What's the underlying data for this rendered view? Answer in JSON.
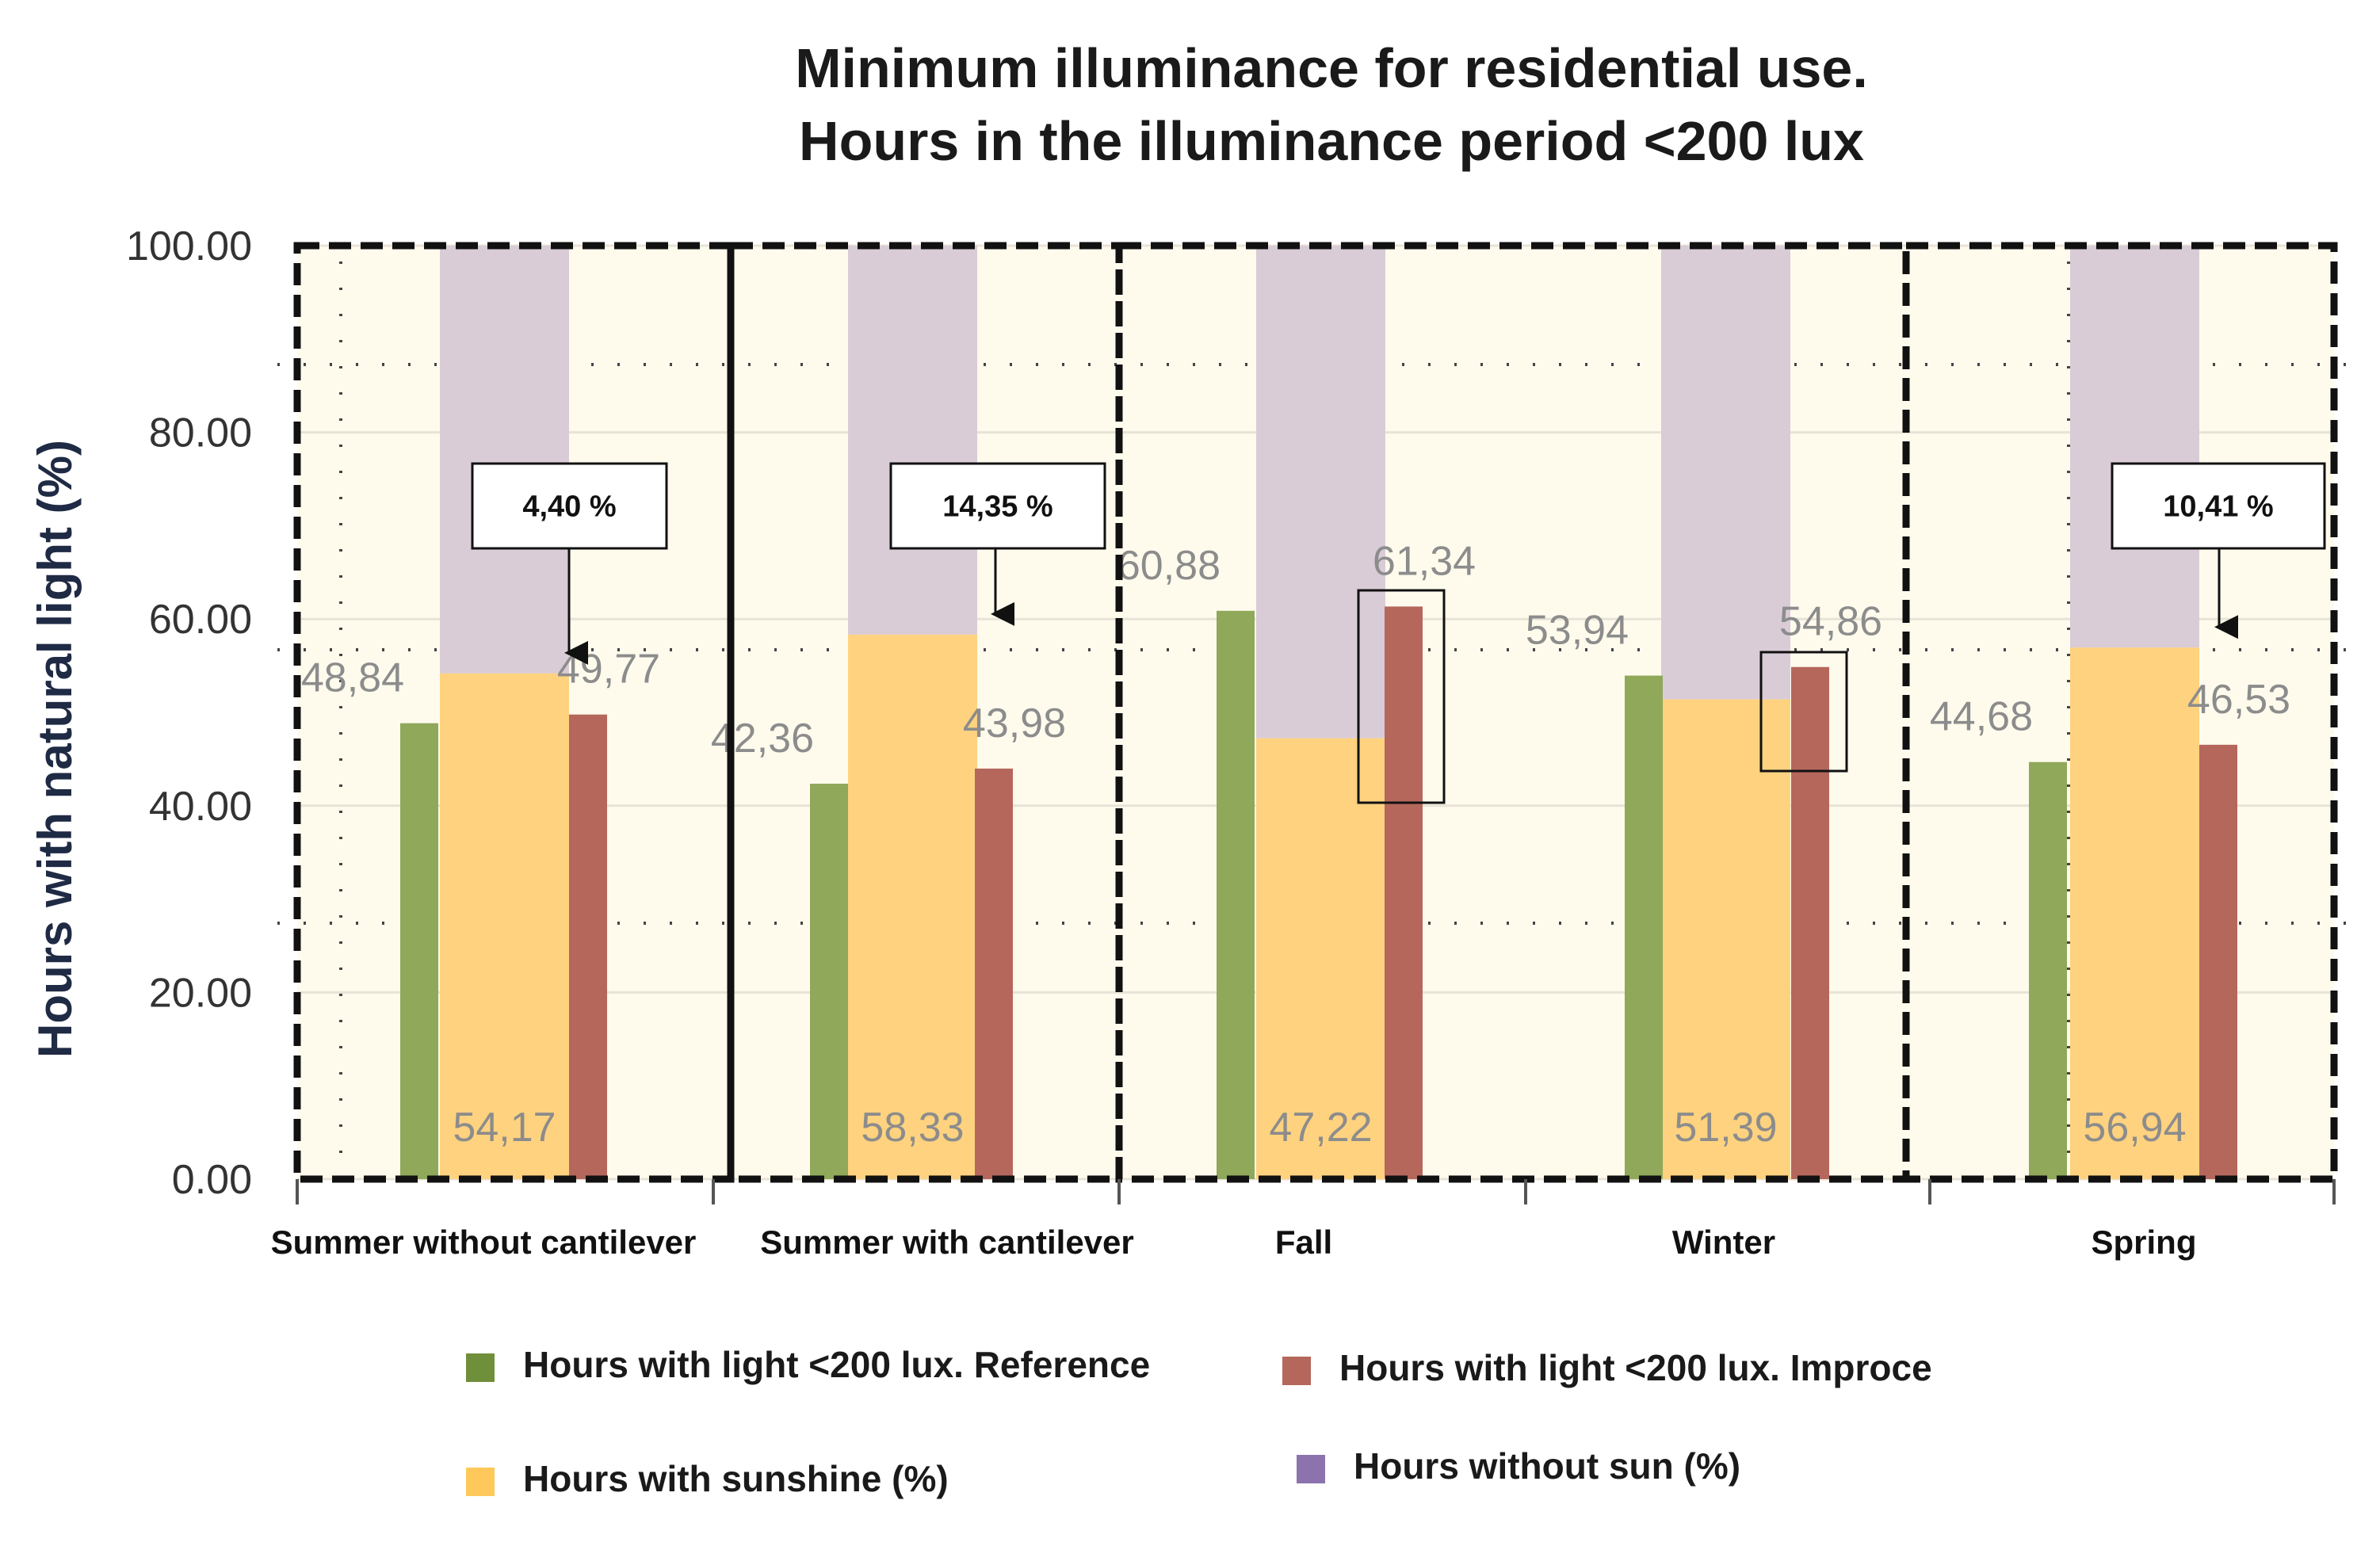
{
  "chart_data": {
    "type": "bar",
    "title": [
      "Minimum illuminance for residential use.",
      "Hours in the illuminance period <200 lux"
    ],
    "ylabel": "Hours with natural light (%)",
    "ylim": [
      0,
      100
    ],
    "yticks": [
      "0.00",
      "20.00",
      "40.00",
      "60.00",
      "80.00",
      "100.00"
    ],
    "categories": [
      "Summer without cantilever",
      "Summer with cantilever",
      "Fall",
      "Winter",
      "Spring"
    ],
    "series": [
      {
        "name": "Hours with light <200 lux. Reference",
        "color": "#8fa85a",
        "values": [
          48.84,
          42.36,
          60.88,
          53.94,
          44.68
        ],
        "labels": [
          "48,84",
          "42,36",
          "60,88",
          "53,94",
          "44,68"
        ]
      },
      {
        "name": "Hours with sunshine (%)",
        "color": "#ffd27f",
        "values": [
          54.17,
          58.33,
          47.22,
          51.39,
          56.94
        ],
        "labels": [
          "54,17",
          "58,33",
          "47,22",
          "51,39",
          "56,94"
        ]
      },
      {
        "name": "Hours with light <200 lux. Improce",
        "color": "#b5675c",
        "values": [
          49.77,
          43.98,
          61.34,
          54.86,
          46.53
        ],
        "labels": [
          "49,77",
          "43,98",
          "61,34",
          "54,86",
          "46,53"
        ]
      },
      {
        "name": "Hours without sun (%)",
        "color": "#d9ccd6",
        "values": [
          45.83,
          41.67,
          52.78,
          48.61,
          43.06
        ]
      }
    ],
    "annotations": [
      "4,40 %",
      "14,35 %",
      "",
      "",
      "10,41 %"
    ],
    "legend": {
      "items": [
        {
          "label": "Hours with light <200 lux. Reference",
          "color": "#6f8f3a"
        },
        {
          "label": "Hours with light <200 lux. Improce",
          "color": "#b5675c"
        },
        {
          "label": "Hours with sunshine (%)",
          "color": "#ffc85a"
        },
        {
          "label": "Hours without sun (%)",
          "color": "#8c73ad"
        }
      ]
    }
  }
}
